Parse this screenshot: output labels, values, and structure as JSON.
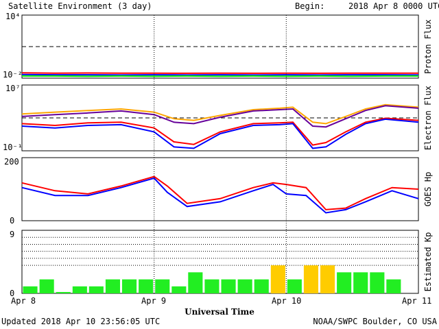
{
  "header": {
    "title": "Satellite Environment (3 day)",
    "begin_label": "Begin:",
    "begin_value": "2018 Apr 8 0000 UTC"
  },
  "footer": {
    "updated": "Updated 2018 Apr 10 23:56:05 UTC",
    "source": "NOAA/SWPC Boulder, CO USA"
  },
  "xaxis": {
    "title": "Universal Time",
    "ticks": [
      "Apr 8",
      "Apr 9",
      "Apr 10",
      "Apr 11"
    ]
  },
  "panels": {
    "proton": {
      "label": "Proton Flux",
      "tick_top": "10⁴",
      "tick_bottom": "10⁻²"
    },
    "electron": {
      "label": "Electron Flux",
      "tick_top": "10⁷",
      "tick_bottom": "10⁻¹"
    },
    "goes": {
      "label": "GOES Hp",
      "tick_top": "200",
      "tick_bottom": "0"
    },
    "kp": {
      "label": "Estimated Kp",
      "tick_top": "9",
      "tick_bottom": "0"
    }
  },
  "colors": {
    "red": "#ff0000",
    "blue": "#0000ff",
    "green": "#00ff00",
    "orange": "#ffa500",
    "purple": "#660099",
    "kp_green": "#22ee22",
    "kp_yellow": "#ffcc00"
  },
  "chart_data": [
    {
      "type": "line",
      "title": "Proton Flux",
      "x_unit": "days since 2018 Apr 8 0000 UTC",
      "yscale": "log",
      "ylim": [
        0.01,
        10000
      ],
      "threshold": 10,
      "series": [
        {
          "color": "red",
          "x": [
            0,
            0.25,
            0.5,
            0.75,
            1,
            1.25,
            1.5,
            1.75,
            2,
            2.25,
            2.5,
            2.75,
            3
          ],
          "y": [
            0.032,
            0.03,
            0.031,
            0.03,
            0.03,
            0.029,
            0.03,
            0.029,
            0.03,
            0.029,
            0.03,
            0.03,
            0.03
          ]
        },
        {
          "color": "blue",
          "x": [
            0,
            0.25,
            0.5,
            0.75,
            1,
            1.25,
            1.5,
            1.75,
            2,
            2.25,
            2.5,
            2.75,
            3
          ],
          "y": [
            0.022,
            0.021,
            0.021,
            0.02,
            0.021,
            0.02,
            0.021,
            0.02,
            0.021,
            0.02,
            0.021,
            0.021,
            0.02
          ]
        },
        {
          "color": "green",
          "x": [
            0,
            0.25,
            0.5,
            0.75,
            1,
            1.25,
            1.5,
            1.75,
            2,
            2.25,
            2.5,
            2.75,
            3
          ],
          "y": [
            0.016,
            0.016,
            0.015,
            0.016,
            0.015,
            0.016,
            0.015,
            0.016,
            0.015,
            0.016,
            0.015,
            0.016,
            0.016
          ]
        }
      ]
    },
    {
      "type": "line",
      "title": "Electron Flux",
      "x_unit": "days since 2018 Apr 8 0000 UTC",
      "yscale": "log",
      "ylim": [
        0.1,
        10000000
      ],
      "threshold": 1000,
      "series": [
        {
          "color": "orange",
          "x": [
            0,
            0.25,
            0.5,
            0.75,
            1,
            1.15,
            1.3,
            1.5,
            1.75,
            1.95,
            2.05,
            2.2,
            2.3,
            2.45,
            2.6,
            2.75,
            3
          ],
          "y": [
            3000,
            5000,
            8000,
            12000,
            5000,
            800,
            500,
            2000,
            10000,
            15000,
            20000,
            300,
            200,
            1500,
            12000,
            40000,
            20000
          ]
        },
        {
          "color": "purple",
          "x": [
            0,
            0.25,
            0.5,
            0.75,
            1,
            1.15,
            1.3,
            1.5,
            1.75,
            1.95,
            2.05,
            2.2,
            2.3,
            2.45,
            2.6,
            2.75,
            3
          ],
          "y": [
            1500,
            2500,
            4000,
            7000,
            2500,
            300,
            200,
            1200,
            7000,
            10000,
            12000,
            100,
            80,
            800,
            8000,
            30000,
            15000
          ]
        },
        {
          "color": "red",
          "x": [
            0,
            0.25,
            0.5,
            0.75,
            1,
            1.15,
            1.3,
            1.5,
            1.75,
            1.95,
            2.05,
            2.2,
            2.3,
            2.45,
            2.6,
            2.75,
            3
          ],
          "y": [
            200,
            120,
            250,
            300,
            60,
            1.2,
            0.6,
            20,
            200,
            250,
            300,
            0.5,
            1,
            20,
            300,
            900,
            500
          ]
        },
        {
          "color": "blue",
          "x": [
            0,
            0.25,
            0.5,
            0.75,
            1,
            1.15,
            1.3,
            1.5,
            1.75,
            1.95,
            2.05,
            2.2,
            2.3,
            2.45,
            2.6,
            2.75,
            3
          ],
          "y": [
            100,
            60,
            120,
            150,
            20,
            0.3,
            0.2,
            12,
            120,
            150,
            200,
            0.2,
            0.3,
            10,
            200,
            700,
            300
          ]
        }
      ]
    },
    {
      "type": "line",
      "title": "GOES Hp",
      "x_unit": "days since 2018 Apr 8 0000 UTC",
      "ylim": [
        0,
        200
      ],
      "series": [
        {
          "color": "red",
          "x": [
            0,
            0.25,
            0.5,
            0.75,
            1,
            1.1,
            1.25,
            1.5,
            1.75,
            1.9,
            2,
            2.15,
            2.3,
            2.45,
            2.6,
            2.8,
            3
          ],
          "y": [
            120,
            95,
            85,
            110,
            140,
            110,
            55,
            70,
            105,
            120,
            115,
            105,
            35,
            40,
            70,
            105,
            100
          ]
        },
        {
          "color": "blue",
          "x": [
            0,
            0.25,
            0.5,
            0.75,
            1,
            1.1,
            1.25,
            1.5,
            1.75,
            1.9,
            2,
            2.15,
            2.3,
            2.45,
            2.6,
            2.8,
            3
          ],
          "y": [
            105,
            80,
            80,
            105,
            135,
            90,
            45,
            60,
            95,
            115,
            85,
            80,
            25,
            35,
            60,
            95,
            70
          ]
        }
      ]
    },
    {
      "type": "bar",
      "title": "Estimated Kp",
      "x_unit": "3-hour intervals starting 2018 Apr 8 0000 UTC",
      "ylim": [
        0,
        9
      ],
      "values": [
        1,
        2,
        0.2,
        1,
        1,
        2,
        2,
        2,
        2,
        1,
        3,
        2,
        2,
        2,
        2,
        4,
        2,
        4,
        4,
        3,
        3,
        3,
        2,
        0
      ],
      "colors": [
        "green",
        "green",
        "green",
        "green",
        "green",
        "green",
        "green",
        "green",
        "green",
        "green",
        "green",
        "green",
        "green",
        "green",
        "green",
        "yellow",
        "green",
        "yellow",
        "yellow",
        "green",
        "green",
        "green",
        "green",
        "green"
      ]
    }
  ]
}
